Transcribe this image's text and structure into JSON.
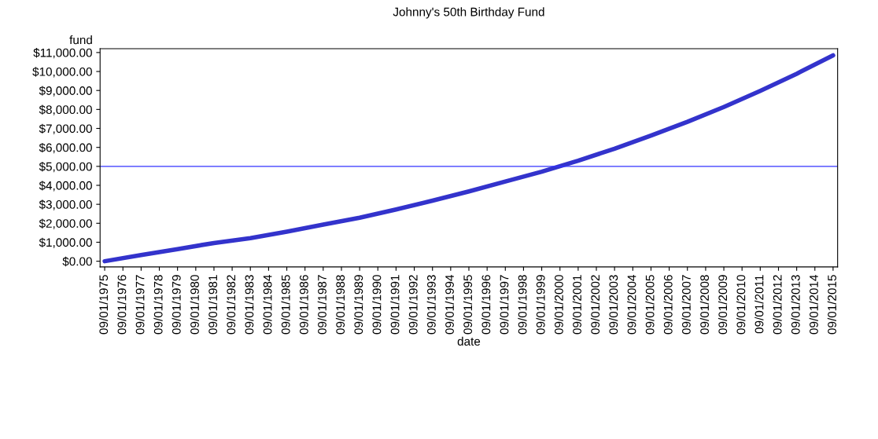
{
  "chart_data": {
    "type": "line",
    "title": "Johnny's 50th Birthday Fund",
    "ylabel": "fund",
    "xlabel": "date",
    "x": [
      "1975-09-01",
      "1977-09-01",
      "1979-09-01",
      "1981-09-01",
      "1983-09-01",
      "1985-09-01",
      "1987-09-01",
      "1989-09-01",
      "1991-09-01",
      "1993-09-01",
      "1995-09-01",
      "1997-09-01",
      "1999-09-01",
      "2001-09-01",
      "2003-09-01",
      "2005-09-01",
      "2007-09-01",
      "2009-09-01",
      "2011-09-01",
      "2013-09-01",
      "2015-09-01"
    ],
    "series": [
      {
        "color": "#3333cc",
        "values": [
          0,
          330,
          640,
          960,
          1220,
          1560,
          1930,
          2290,
          2730,
          3190,
          3680,
          4200,
          4720,
          5300,
          5930,
          6620,
          7350,
          8130,
          8980,
          9880,
          10850
        ]
      }
    ],
    "ylim": [
      -300,
      11200
    ],
    "yticks": [
      {
        "value": 0,
        "label": "$0.00"
      },
      {
        "value": 1000,
        "label": "$1,000.00"
      },
      {
        "value": 2000,
        "label": "$2,000.00"
      },
      {
        "value": 3000,
        "label": "$3,000.00"
      },
      {
        "value": 4000,
        "label": "$4,000.00"
      },
      {
        "value": 5000,
        "label": "$5,000.00"
      },
      {
        "value": 6000,
        "label": "$6,000.00"
      },
      {
        "value": 7000,
        "label": "$7,000.00"
      },
      {
        "value": 8000,
        "label": "$8,000.00"
      },
      {
        "value": 9000,
        "label": "$9,000.00"
      },
      {
        "value": 10000,
        "label": "$10,000.00"
      },
      {
        "value": 11000,
        "label": "$11,000.00"
      }
    ],
    "xlim": [
      "1975-06-01",
      "2015-12-01"
    ],
    "xticks": [
      {
        "value": "1975-09-01",
        "label": "09/01/1975"
      },
      {
        "value": "1976-09-01",
        "label": "09/01/1976"
      },
      {
        "value": "1977-09-01",
        "label": "09/01/1977"
      },
      {
        "value": "1978-09-01",
        "label": "09/01/1978"
      },
      {
        "value": "1979-09-01",
        "label": "09/01/1979"
      },
      {
        "value": "1980-09-01",
        "label": "09/01/1980"
      },
      {
        "value": "1981-09-01",
        "label": "09/01/1981"
      },
      {
        "value": "1982-09-01",
        "label": "09/01/1982"
      },
      {
        "value": "1983-09-01",
        "label": "09/01/1983"
      },
      {
        "value": "1984-09-01",
        "label": "09/01/1984"
      },
      {
        "value": "1985-09-01",
        "label": "09/01/1985"
      },
      {
        "value": "1986-09-01",
        "label": "09/01/1986"
      },
      {
        "value": "1987-09-01",
        "label": "09/01/1987"
      },
      {
        "value": "1988-09-01",
        "label": "09/01/1988"
      },
      {
        "value": "1989-09-01",
        "label": "09/01/1989"
      },
      {
        "value": "1990-09-01",
        "label": "09/01/1990"
      },
      {
        "value": "1991-09-01",
        "label": "09/01/1991"
      },
      {
        "value": "1992-09-01",
        "label": "09/01/1992"
      },
      {
        "value": "1993-09-01",
        "label": "09/01/1993"
      },
      {
        "value": "1994-09-01",
        "label": "09/01/1994"
      },
      {
        "value": "1995-09-01",
        "label": "09/01/1995"
      },
      {
        "value": "1996-09-01",
        "label": "09/01/1996"
      },
      {
        "value": "1997-09-01",
        "label": "09/01/1997"
      },
      {
        "value": "1998-09-01",
        "label": "09/01/1998"
      },
      {
        "value": "1999-09-01",
        "label": "09/01/1999"
      },
      {
        "value": "2000-09-01",
        "label": "09/01/2000"
      },
      {
        "value": "2001-09-01",
        "label": "09/01/2001"
      },
      {
        "value": "2002-09-01",
        "label": "09/01/2002"
      },
      {
        "value": "2003-09-01",
        "label": "09/01/2003"
      },
      {
        "value": "2004-09-01",
        "label": "09/01/2004"
      },
      {
        "value": "2005-09-01",
        "label": "09/01/2005"
      },
      {
        "value": "2006-09-01",
        "label": "09/01/2006"
      },
      {
        "value": "2007-09-01",
        "label": "09/01/2007"
      },
      {
        "value": "2008-09-01",
        "label": "09/01/2008"
      },
      {
        "value": "2009-09-01",
        "label": "09/01/2009"
      },
      {
        "value": "2010-09-01",
        "label": "09/01/2010"
      },
      {
        "value": "2011-09-01",
        "label": "09/01/2011"
      },
      {
        "value": "2012-09-01",
        "label": "09/01/2012"
      },
      {
        "value": "2013-09-01",
        "label": "09/01/2013"
      },
      {
        "value": "2014-09-01",
        "label": "09/01/2014"
      },
      {
        "value": "2015-09-01",
        "label": "09/01/2015"
      }
    ],
    "ref_lines": [
      {
        "axis": "y",
        "value": 5000,
        "label": null,
        "color": "#3333ff"
      }
    ],
    "grid": false,
    "legend": false
  }
}
